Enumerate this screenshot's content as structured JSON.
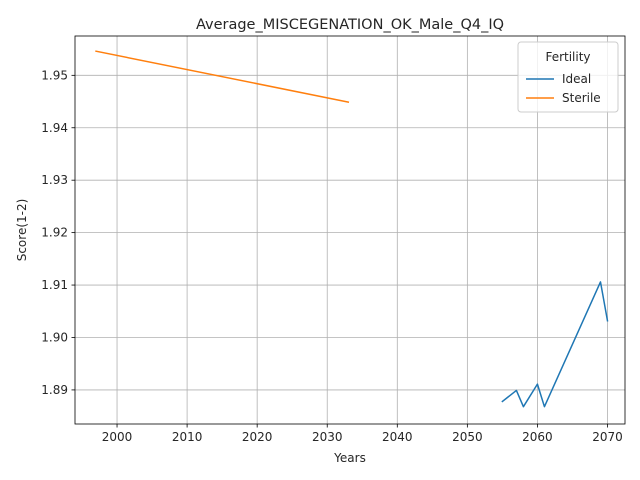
{
  "chart_data": {
    "type": "line",
    "title": "Average_MISCEGENATION_OK_Male_Q4_IQ",
    "xlabel": "Years",
    "ylabel": "Score(1-2)",
    "xlim": [
      1994,
      2072.5
    ],
    "ylim": [
      1.8835,
      1.9575
    ],
    "xticks": [
      2000,
      2010,
      2020,
      2030,
      2040,
      2050,
      2060,
      2070
    ],
    "yticks": [
      1.89,
      1.9,
      1.91,
      1.92,
      1.93,
      1.94,
      1.95
    ],
    "ytick_labels": [
      "1.89",
      "1.90",
      "1.91",
      "1.92",
      "1.93",
      "1.94",
      "1.95"
    ],
    "grid": true,
    "legend": {
      "title": "Fertility",
      "placement": "top-right"
    },
    "series": [
      {
        "name": "Ideal",
        "color": "#1f77b4",
        "points": [
          [
            2055,
            1.8878
          ],
          [
            2057,
            1.8899
          ],
          [
            2058,
            1.8868
          ],
          [
            2060,
            1.8911
          ],
          [
            2061,
            1.8868
          ],
          [
            2069,
            1.9106
          ],
          [
            2070,
            1.9032
          ]
        ]
      },
      {
        "name": "Sterile",
        "color": "#ff7f0e",
        "points": [
          [
            1997,
            1.9546
          ],
          [
            2033,
            1.9449
          ]
        ]
      }
    ]
  }
}
